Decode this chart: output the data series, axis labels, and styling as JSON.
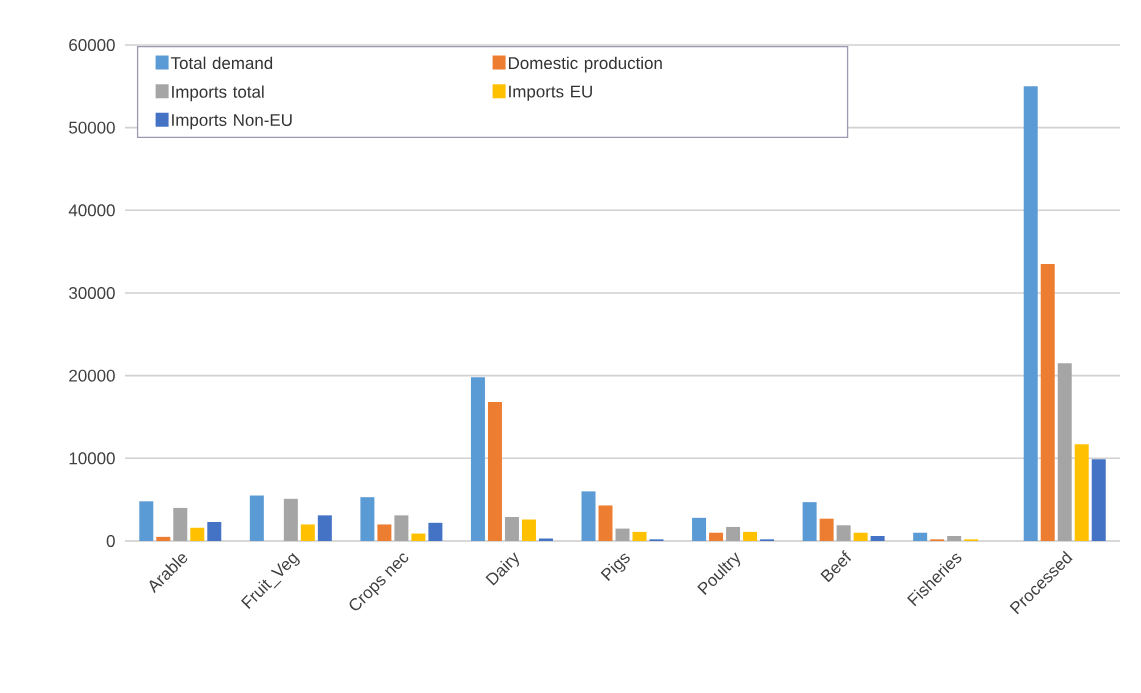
{
  "chart_data": {
    "type": "bar",
    "categories": [
      "Arable",
      "Fruit_Veg",
      "Crops nec",
      "Dairy",
      "Pigs",
      "Poultry",
      "Beef",
      "Fisheries",
      "Processed"
    ],
    "series": [
      {
        "name": "Total demand",
        "color": "#5b9bd5",
        "values": [
          4800,
          5500,
          5300,
          19800,
          6000,
          2800,
          4700,
          1000,
          55000
        ]
      },
      {
        "name": "Domestic production",
        "color": "#ed7d31",
        "values": [
          500,
          0,
          2000,
          16800,
          4300,
          1000,
          2700,
          200,
          33500
        ]
      },
      {
        "name": "Imports total",
        "color": "#a5a5a5",
        "values": [
          4000,
          5100,
          3100,
          2900,
          1500,
          1700,
          1900,
          600,
          21500
        ]
      },
      {
        "name": "Imports EU",
        "color": "#ffc000",
        "values": [
          1600,
          2000,
          900,
          2600,
          1100,
          1100,
          1000,
          200,
          11700
        ]
      },
      {
        "name": "Imports Non-EU",
        "color": "#4472c4",
        "values": [
          2300,
          3100,
          2200,
          300,
          200,
          200,
          600,
          0,
          9900
        ]
      }
    ],
    "ylim": [
      0,
      60000
    ],
    "yticks": [
      0,
      10000,
      20000,
      30000,
      40000,
      50000,
      60000
    ],
    "grid": "y",
    "legend": "top left"
  }
}
